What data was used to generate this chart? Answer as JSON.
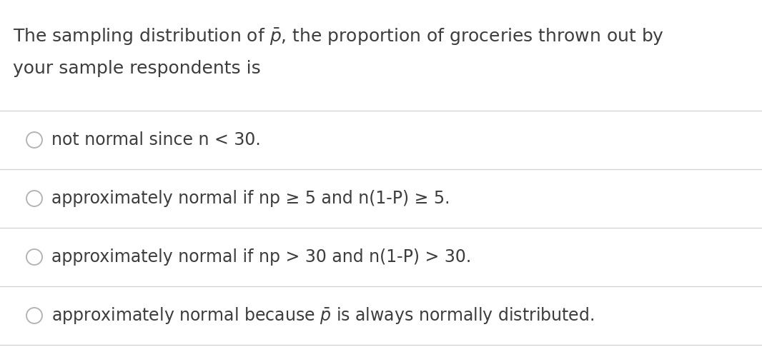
{
  "background_color": "#ffffff",
  "title_line1": "The sampling distribution of $\\bar{p}$, the proportion of groceries thrown out by",
  "title_line2": "your sample respondents is",
  "options": [
    "not normal since n < 30.",
    "approximately normal if np ≥ 5 and n(1-P) ≥ 5.",
    "approximately normal if np > 30 and n(1-P) > 30.",
    "approximately normal because $\\bar{p}$ is always normally distributed."
  ],
  "text_color": "#3d3d3d",
  "circle_color": "#b0b0b0",
  "line_color": "#d0d0d0",
  "title_fontsize": 18,
  "option_fontsize": 17,
  "fig_width": 10.66,
  "fig_height": 4.86,
  "dpi": 100
}
